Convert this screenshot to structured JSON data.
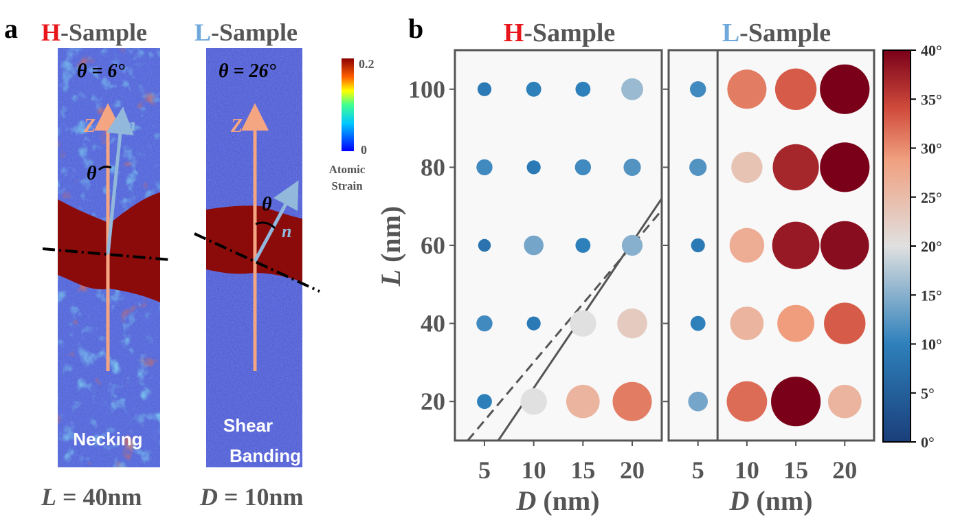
{
  "panel_a": {
    "label": "a",
    "strain_colorbar": {
      "max_label": "0.2",
      "min_label": "0",
      "title_line1": "Atomic",
      "title_line2": "Strain"
    },
    "samples": [
      {
        "title_letter": "H",
        "title_rest": "-Sample",
        "letter_color": "#e8161b",
        "theta_text": "θ = 6°",
        "theta_symbol": "θ",
        "vec_z": "Z",
        "vec_n": "n",
        "mode_line1": "Necking",
        "mode_line2": "",
        "bottom_var": "L",
        "bottom_rest": " = 40nm"
      },
      {
        "title_letter": "L",
        "title_rest": "-Sample",
        "letter_color": "#6fa8dc",
        "theta_text": "θ = 26°",
        "theta_symbol": "θ",
        "vec_z": "Z",
        "vec_n": "n",
        "mode_line1": "Shear",
        "mode_line2": "Banding",
        "bottom_var": "D",
        "bottom_rest": " = 10nm"
      }
    ]
  },
  "panel_b": {
    "label": "b",
    "colors": {
      "H": "#e8161b",
      "L": "#6fa8dc",
      "frame": "#555555",
      "text": "#555555"
    }
  },
  "chart_data": {
    "type": "scatter",
    "subplots": [
      {
        "title_letter": "H",
        "title_rest": "-Sample",
        "xlabel_var": "D",
        "xlabel_rest": " (nm)",
        "x_ticks": [
          5,
          10,
          15,
          20
        ],
        "y_ticks": [
          20,
          40,
          60,
          80,
          100
        ],
        "xlim": [
          2,
          23
        ],
        "ylim": [
          10,
          110
        ],
        "points": [
          {
            "D": 5,
            "L": 100,
            "theta": 9
          },
          {
            "D": 10,
            "L": 100,
            "theta": 10
          },
          {
            "D": 15,
            "L": 100,
            "theta": 10
          },
          {
            "D": 20,
            "L": 100,
            "theta": 16
          },
          {
            "D": 5,
            "L": 80,
            "theta": 11
          },
          {
            "D": 10,
            "L": 80,
            "theta": 9
          },
          {
            "D": 15,
            "L": 80,
            "theta": 11
          },
          {
            "D": 20,
            "L": 80,
            "theta": 12
          },
          {
            "D": 5,
            "L": 60,
            "theta": 8
          },
          {
            "D": 10,
            "L": 60,
            "theta": 14
          },
          {
            "D": 15,
            "L": 60,
            "theta": 10
          },
          {
            "D": 20,
            "L": 60,
            "theta": 15
          },
          {
            "D": 5,
            "L": 40,
            "theta": 11
          },
          {
            "D": 10,
            "L": 40,
            "theta": 9
          },
          {
            "D": 15,
            "L": 40,
            "theta": 20
          },
          {
            "D": 20,
            "L": 40,
            "theta": 23
          },
          {
            "D": 5,
            "L": 20,
            "theta": 10
          },
          {
            "D": 10,
            "L": 20,
            "theta": 20
          },
          {
            "D": 15,
            "L": 20,
            "theta": 26
          },
          {
            "D": 20,
            "L": 20,
            "theta": 31
          }
        ],
        "lines": [
          {
            "style": "solid",
            "from": [
              6.4,
              10
            ],
            "to": [
              23,
              72
            ]
          },
          {
            "style": "dashed",
            "from": [
              3.3,
              10
            ],
            "to": [
              23,
              69
            ]
          }
        ]
      },
      {
        "title_letter": "L",
        "title_rest": "-Sample",
        "xlabel_var": "D",
        "xlabel_rest": " (nm)",
        "x_ticks": [
          5,
          10,
          15,
          20
        ],
        "xlim": [
          2,
          23
        ],
        "ylim": [
          10,
          110
        ],
        "divider_x": 7,
        "points": [
          {
            "D": 5,
            "L": 100,
            "theta": 11
          },
          {
            "D": 10,
            "L": 100,
            "theta": 31
          },
          {
            "D": 15,
            "L": 100,
            "theta": 33
          },
          {
            "D": 20,
            "L": 100,
            "theta": 40
          },
          {
            "D": 5,
            "L": 80,
            "theta": 12
          },
          {
            "D": 10,
            "L": 80,
            "theta": 24
          },
          {
            "D": 15,
            "L": 80,
            "theta": 37
          },
          {
            "D": 20,
            "L": 80,
            "theta": 40
          },
          {
            "D": 5,
            "L": 60,
            "theta": 9
          },
          {
            "D": 10,
            "L": 60,
            "theta": 27
          },
          {
            "D": 15,
            "L": 60,
            "theta": 38
          },
          {
            "D": 20,
            "L": 60,
            "theta": 39
          },
          {
            "D": 5,
            "L": 40,
            "theta": 10
          },
          {
            "D": 10,
            "L": 40,
            "theta": 26
          },
          {
            "D": 15,
            "L": 40,
            "theta": 29
          },
          {
            "D": 20,
            "L": 40,
            "theta": 33
          },
          {
            "D": 5,
            "L": 20,
            "theta": 14
          },
          {
            "D": 10,
            "L": 20,
            "theta": 32
          },
          {
            "D": 15,
            "L": 20,
            "theta": 40
          },
          {
            "D": 20,
            "L": 20,
            "theta": 26
          }
        ]
      }
    ],
    "ylabel_var": "L",
    "ylabel_rest": " (nm)",
    "colorbar": {
      "min": 0,
      "max": 40,
      "ticks": [
        "0°",
        "5°",
        "10°",
        "15°",
        "20°",
        "25°",
        "30°",
        "35°",
        "40°"
      ]
    },
    "legend": "none",
    "grid": false
  }
}
